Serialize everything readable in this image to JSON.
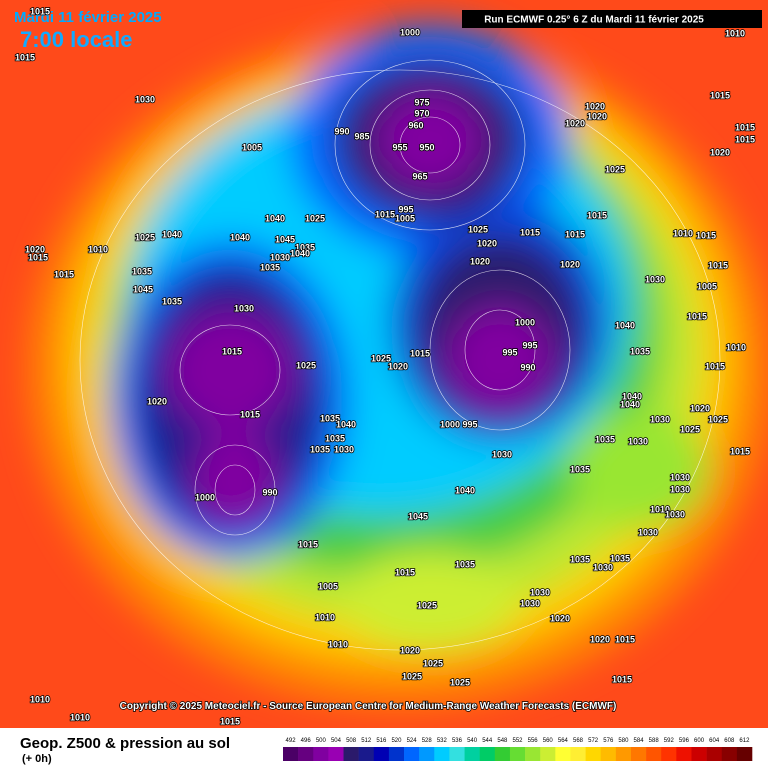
{
  "header": {
    "date": "Mardi 11 février 2025",
    "time": "7:00 locale",
    "run": "Run ECMWF 0.25° 6 Z du Mardi 11 février 2025"
  },
  "copyright": "Copyright © 2025 Meteociel.fr - Source European Centre for Medium-Range Weather Forecasts (ECMWF)",
  "legend": {
    "title": "Geop. Z500 & pression au sol",
    "lead": "(+ 0h)",
    "ticks": [
      492,
      496,
      500,
      504,
      508,
      512,
      516,
      520,
      524,
      528,
      532,
      536,
      540,
      544,
      548,
      552,
      556,
      560,
      564,
      568,
      572,
      576,
      580,
      584,
      588,
      592,
      596,
      600,
      604,
      608,
      612
    ],
    "colors": [
      "#4b0066",
      "#660080",
      "#8000a0",
      "#9900b3",
      "#2b1a6b",
      "#1a1a8c",
      "#0000b3",
      "#0033cc",
      "#0066ff",
      "#0099ff",
      "#00ccff",
      "#33e0e0",
      "#00d0a0",
      "#00cc66",
      "#33cc33",
      "#66dd33",
      "#99e633",
      "#ccee33",
      "#ffff33",
      "#ffee33",
      "#ffd700",
      "#ffbb00",
      "#ff9900",
      "#ff7700",
      "#ff5500",
      "#ff3300",
      "#ee1100",
      "#cc0000",
      "#aa0000",
      "#880000",
      "#660000"
    ]
  },
  "pressure_labels": [
    1015,
    1015,
    1030,
    1000,
    1010,
    1015,
    1020,
    1020,
    1020,
    1015,
    1015,
    1020,
    975,
    970,
    960,
    990,
    985,
    955,
    950,
    965,
    1005,
    1025,
    995,
    1005,
    1015,
    1025,
    1040,
    1040,
    1040,
    1045,
    1035,
    1040,
    1035,
    1030,
    1025,
    1010,
    1020,
    1015,
    1015,
    1035,
    1045,
    1035,
    1030,
    1025,
    1020,
    1020,
    1015,
    1015,
    1015,
    1020,
    1010,
    1015,
    1030,
    1015,
    1005,
    1015,
    1000,
    995,
    995,
    990,
    1015,
    1020,
    1025,
    1025,
    1015,
    1020,
    1015,
    1035,
    1040,
    1035,
    1030,
    1035,
    1000,
    995,
    1030,
    1040,
    1035,
    1030,
    1035,
    1040,
    1030,
    1025,
    1015,
    1020,
    1025,
    1030,
    1030,
    1010,
    1030,
    1045,
    1035,
    1030,
    1035,
    1030,
    1015,
    1005,
    1015,
    1035,
    1030,
    1030,
    1025,
    1010,
    1020,
    1020,
    1015,
    1020,
    1025,
    1025,
    1025,
    1015,
    1010,
    1010,
    1010,
    1015,
    990,
    1000,
    1015,
    1010,
    1040,
    1035,
    1040
  ]
}
